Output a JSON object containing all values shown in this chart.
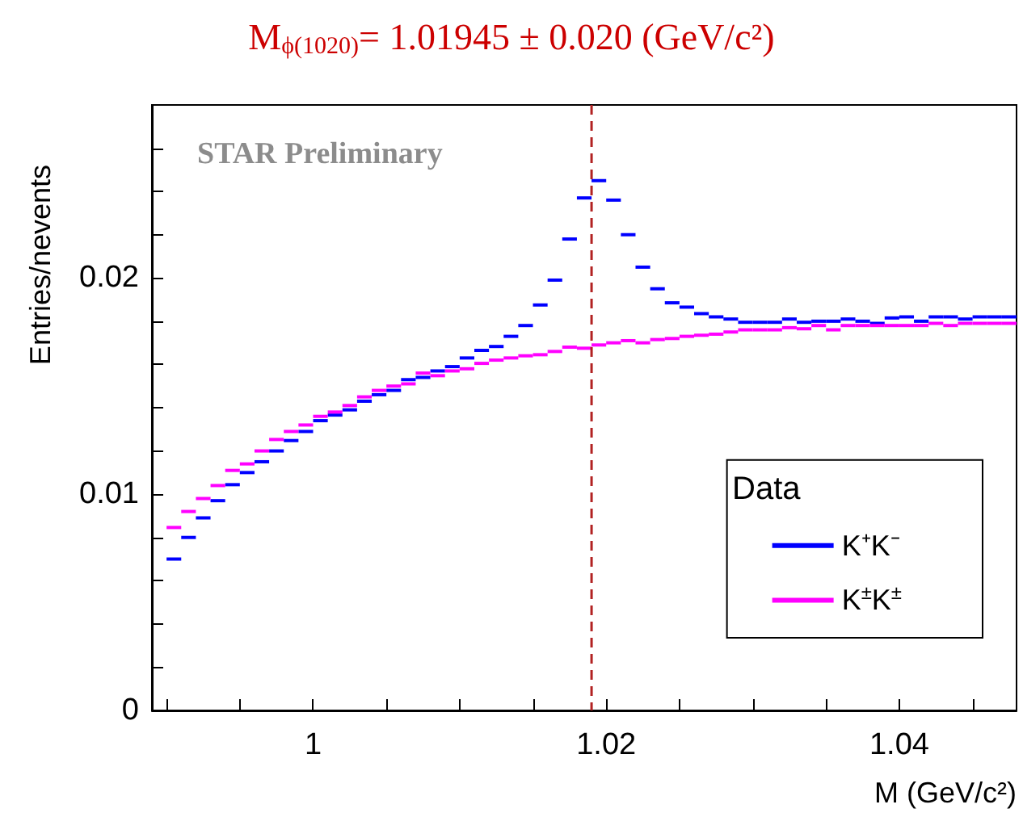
{
  "chart_data": {
    "type": "histogram",
    "title": "M$_{ϕ(1020)}$= 1.01945 ± 0.020 (GeV/c²)",
    "xlabel": "M (GeV/c²)",
    "ylabel": "Entries/nevents",
    "legend_title": "Data",
    "annotations": [
      "STAR Preliminary"
    ],
    "bins": [
      0.99,
      0.991,
      0.992,
      0.993,
      0.994,
      0.995,
      0.996,
      0.997,
      0.998,
      0.999,
      1.0,
      1.001,
      1.002,
      1.003,
      1.004,
      1.005,
      1.006,
      1.007,
      1.008,
      1.009,
      1.01,
      1.011,
      1.012,
      1.013,
      1.014,
      1.015,
      1.016,
      1.017,
      1.018,
      1.019,
      1.02,
      1.021,
      1.022,
      1.023,
      1.024,
      1.025,
      1.026,
      1.027,
      1.028,
      1.029,
      1.03,
      1.031,
      1.032,
      1.033,
      1.034,
      1.035,
      1.036,
      1.037,
      1.038,
      1.039,
      1.04,
      1.041,
      1.042,
      1.043,
      1.044,
      1.045,
      1.046,
      1.047,
      1.048
    ],
    "series": [
      {
        "name": "K⁺K⁻",
        "color": "#0000ff",
        "values": [
          0.007,
          0.008,
          0.0089,
          0.0097,
          0.01044,
          0.011,
          0.0115,
          0.012,
          0.01248,
          0.0129,
          0.0134,
          0.01366,
          0.0139,
          0.0143,
          0.0146,
          0.0148,
          0.0153,
          0.0154,
          0.0157,
          0.0159,
          0.0163,
          0.01665,
          0.01683,
          0.0173,
          0.0178,
          0.01875,
          0.0199,
          0.0218,
          0.0237,
          0.0245,
          0.0236,
          0.022,
          0.0205,
          0.0195,
          0.01885,
          0.01865,
          0.01835,
          0.0182,
          0.0181,
          0.01795,
          0.01795,
          0.01795,
          0.0181,
          0.01795,
          0.018,
          0.018,
          0.0181,
          0.018,
          0.0179,
          0.01815,
          0.0182,
          0.018,
          0.0182,
          0.0182,
          0.0181,
          0.0182,
          0.0182,
          0.0182
        ]
      },
      {
        "name": "K$^{±}$K$^{±}$",
        "color": "#ff00ff",
        "values": [
          0.00846,
          0.0092,
          0.0098,
          0.0104,
          0.0111,
          0.0114,
          0.012,
          0.01253,
          0.0129,
          0.0132,
          0.0136,
          0.0138,
          0.0141,
          0.0145,
          0.0148,
          0.015,
          0.0151,
          0.0156,
          0.01548,
          0.0157,
          0.0158,
          0.01605,
          0.0162,
          0.0163,
          0.0164,
          0.01645,
          0.0166,
          0.0168,
          0.01675,
          0.0169,
          0.017,
          0.0171,
          0.017,
          0.01715,
          0.0172,
          0.0173,
          0.01735,
          0.0174,
          0.0175,
          0.0176,
          0.0176,
          0.0176,
          0.0177,
          0.01765,
          0.0178,
          0.0176,
          0.0178,
          0.0178,
          0.0178,
          0.0178,
          0.0178,
          0.0178,
          0.0179,
          0.0178,
          0.0179,
          0.0179,
          0.0179,
          0.0179
        ]
      }
    ],
    "xlim": [
      0.989,
      1.048
    ],
    "xticks": [
      {
        "value": 0.99,
        "label": null
      },
      {
        "value": 0.995,
        "label": null
      },
      {
        "value": 1,
        "label": "1"
      },
      {
        "value": 1.005,
        "label": null
      },
      {
        "value": 1.01,
        "label": null
      },
      {
        "value": 1.015,
        "label": null
      },
      {
        "value": 1.02,
        "label": "1.02"
      },
      {
        "value": 1.025,
        "label": null
      },
      {
        "value": 1.03,
        "label": null
      },
      {
        "value": 1.035,
        "label": null
      },
      {
        "value": 1.04,
        "label": "1.04"
      },
      {
        "value": 1.045,
        "label": null
      }
    ],
    "ylim": [
      0,
      0.028
    ],
    "yticks": [
      {
        "value": 0,
        "label": "0"
      },
      {
        "value": 0.002,
        "label": null
      },
      {
        "value": 0.004,
        "label": null
      },
      {
        "value": 0.006,
        "label": null
      },
      {
        "value": 0.008,
        "label": null
      },
      {
        "value": 0.01,
        "label": "0.01"
      },
      {
        "value": 0.012,
        "label": null
      },
      {
        "value": 0.014,
        "label": null
      },
      {
        "value": 0.016,
        "label": null
      },
      {
        "value": 0.018,
        "label": null
      },
      {
        "value": 0.02,
        "label": "0.02"
      },
      {
        "value": 0.022,
        "label": null
      },
      {
        "value": 0.024,
        "label": null
      },
      {
        "value": 0.026,
        "label": null
      }
    ],
    "ref_lines": [
      {
        "axis": "x",
        "value": 1.019,
        "color": "#b22222",
        "line_style": "dashed"
      }
    ],
    "grid": false,
    "legend": "bottom right"
  }
}
